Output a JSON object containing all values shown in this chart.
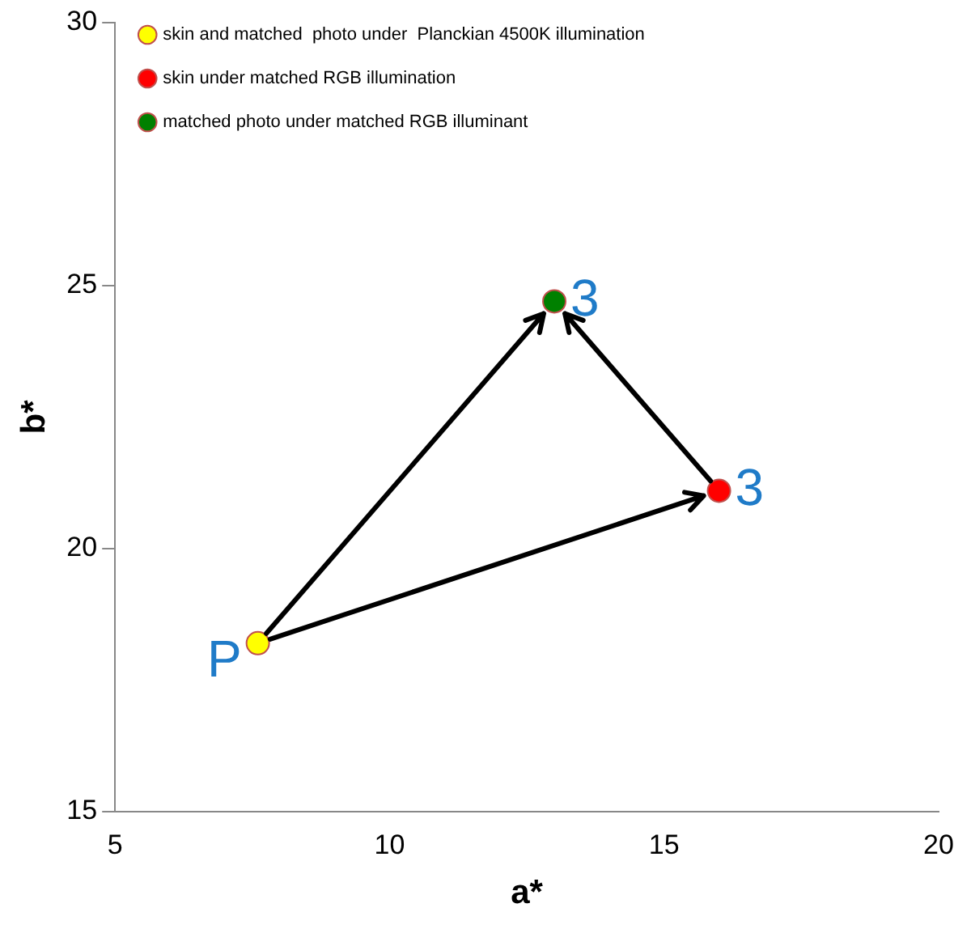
{
  "chart_data": {
    "type": "scatter",
    "xlabel": "a*",
    "ylabel": "b*",
    "xlim": [
      5,
      20
    ],
    "xticks": [
      5,
      10,
      15,
      20
    ],
    "ylim": [
      15,
      30
    ],
    "yticks": [
      15,
      20,
      25,
      30
    ],
    "grid": false,
    "legend": "top",
    "marker": "circle",
    "series": [
      {
        "name": "skin and matched  photo under  Planckian 4500K illumination",
        "color": "#ffff00",
        "x": [
          7.6
        ],
        "values": [
          18.2
        ]
      },
      {
        "name": "skin under matched RGB illumination",
        "color": "#ff0000",
        "x": [
          16.0
        ],
        "values": [
          21.1
        ]
      },
      {
        "name": "matched photo under matched RGB illuminant",
        "color": "#008000",
        "x": [
          13.0
        ],
        "values": [
          24.7
        ]
      }
    ],
    "annotations": [
      {
        "text": "P",
        "x": 7.6,
        "y": 18.2
      },
      {
        "text": "3",
        "x": 16.0,
        "y": 21.1
      },
      {
        "text": "3",
        "x": 13.0,
        "y": 24.7
      }
    ]
  }
}
